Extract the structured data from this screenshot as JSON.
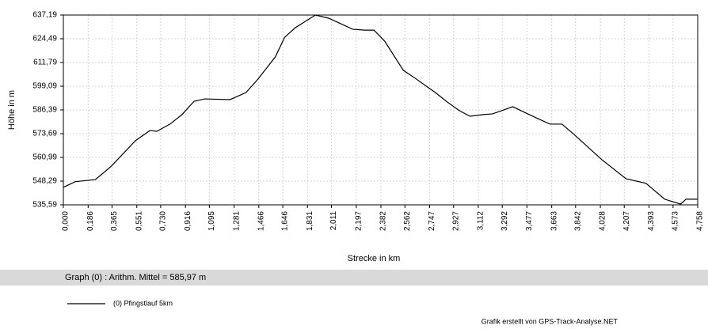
{
  "chart_data": {
    "type": "line",
    "y_label": "Höhe  in  m",
    "x_label": "Strecke  in  km",
    "summary": "Graph (0) :  Arithm. Mittel = 585,97 m",
    "credit": "Grafik erstellt von GPS-Track-Analyse.NET",
    "grid": true,
    "xlim": [
      0,
      4.758
    ],
    "ylim": [
      535.59,
      637.19
    ],
    "xticks": [
      {
        "value": 0,
        "label": "0,000"
      },
      {
        "value": 0.186,
        "label": "0,186"
      },
      {
        "value": 0.365,
        "label": "0,365"
      },
      {
        "value": 0.551,
        "label": "0,551"
      },
      {
        "value": 0.73,
        "label": "0,730"
      },
      {
        "value": 0.916,
        "label": "0,916"
      },
      {
        "value": 1.095,
        "label": "1,095"
      },
      {
        "value": 1.281,
        "label": "1,281"
      },
      {
        "value": 1.466,
        "label": "1,466"
      },
      {
        "value": 1.646,
        "label": "1,646"
      },
      {
        "value": 1.831,
        "label": "1,831"
      },
      {
        "value": 2.011,
        "label": "2,011"
      },
      {
        "value": 2.197,
        "label": "2,197"
      },
      {
        "value": 2.382,
        "label": "2,382"
      },
      {
        "value": 2.562,
        "label": "2,562"
      },
      {
        "value": 2.747,
        "label": "2,747"
      },
      {
        "value": 2.927,
        "label": "2,927"
      },
      {
        "value": 3.112,
        "label": "3,112"
      },
      {
        "value": 3.292,
        "label": "3,292"
      },
      {
        "value": 3.477,
        "label": "3,477"
      },
      {
        "value": 3.663,
        "label": "3,663"
      },
      {
        "value": 3.842,
        "label": "3,842"
      },
      {
        "value": 4.028,
        "label": "4,028"
      },
      {
        "value": 4.207,
        "label": "4,207"
      },
      {
        "value": 4.393,
        "label": "4,393"
      },
      {
        "value": 4.573,
        "label": "4,573"
      },
      {
        "value": 4.758,
        "label": "4,758"
      }
    ],
    "yticks": [
      {
        "value": 535.59,
        "label": "535,59"
      },
      {
        "value": 548.29,
        "label": "548,29"
      },
      {
        "value": 560.99,
        "label": "560,99"
      },
      {
        "value": 573.69,
        "label": "573,69"
      },
      {
        "value": 586.39,
        "label": "586,39"
      },
      {
        "value": 599.09,
        "label": "599,09"
      },
      {
        "value": 611.79,
        "label": "611,79"
      },
      {
        "value": 624.49,
        "label": "624,49"
      },
      {
        "value": 637.19,
        "label": "637,19"
      }
    ],
    "x": [
      0,
      0.09,
      0.24,
      0.36,
      0.54,
      0.65,
      0.7,
      0.8,
      0.89,
      0.98,
      1.06,
      1.25,
      1.37,
      1.46,
      1.59,
      1.66,
      1.74,
      1.89,
      1.99,
      2.17,
      2.26,
      2.33,
      2.41,
      2.55,
      2.64,
      2.73,
      2.79,
      2.88,
      2.97,
      3.05,
      3.15,
      3.22,
      3.37,
      3.56,
      3.65,
      3.74,
      3.83,
      4.04,
      4.22,
      4.37,
      4.51,
      4.63,
      4.67,
      4.758
    ],
    "series": [
      {
        "name": "(0) Pfingstlauf 5km",
        "color": "#000000",
        "values": [
          545.0,
          548.0,
          549.1,
          556.3,
          569.9,
          575.4,
          574.9,
          578.8,
          583.9,
          591.0,
          592.3,
          591.9,
          595.7,
          602.9,
          614.8,
          625.3,
          630.4,
          637.2,
          635.5,
          629.6,
          629.1,
          629.1,
          623.2,
          607.6,
          603.3,
          598.7,
          595.7,
          590.6,
          586.0,
          583.0,
          583.9,
          584.3,
          588.1,
          581.7,
          578.8,
          578.8,
          573.3,
          559.7,
          549.6,
          547.1,
          538.6,
          536.0,
          538.6,
          538.6
        ]
      }
    ]
  }
}
